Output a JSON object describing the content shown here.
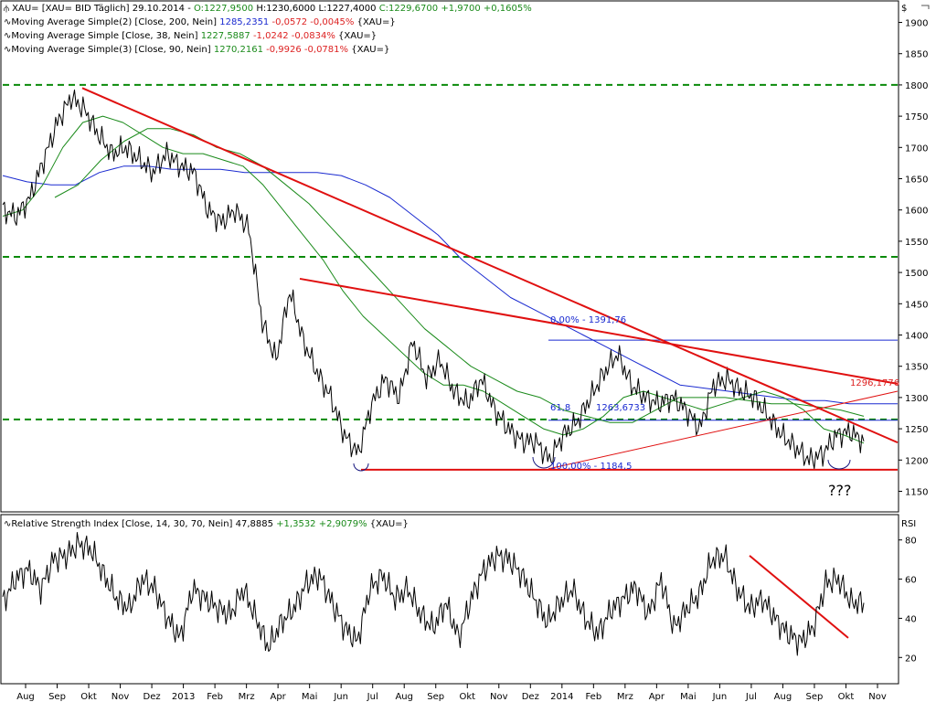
{
  "colors": {
    "price": "#000000",
    "ma200": "#1a2ad0",
    "ma38": "#1a8a1a",
    "ma90": "#1a8a1a",
    "trend": "#e01010",
    "support": "#0a8a0a",
    "fib": "#1a2ad0"
  },
  "legend": {
    "header": {
      "symbol": "XAU= [XAU= BID Täglich] 29.10.2014 - ",
      "o": "O:1227,9500",
      "h": "H:1230,6000",
      "l": "L:1227,4000",
      "c": "C:1229,6700",
      "chg": "+1,9700",
      "pct": "+0,1605%"
    },
    "ma200": {
      "name": "Moving Average Simple(2) [Close, 200, Nein]",
      "val": "1285,2351",
      "chg": "-0,0572",
      "pct": "-0,0045%",
      "tag": "{XAU=}"
    },
    "ma38": {
      "name": "Moving Average Simple [Close, 38, Nein]",
      "val": "1227,5887",
      "chg": "-1,0242",
      "pct": "-0,0834%",
      "tag": "{XAU=}"
    },
    "ma90": {
      "name": "Moving Average Simple(3) [Close, 90, Nein]",
      "val": "1270,2161",
      "chg": "-0,9926",
      "pct": "-0,0781%",
      "tag": "{XAU=}"
    },
    "rsi": {
      "name": "Relative Strength Index [Close, 14, 30, 70, Nein]",
      "val": "47,8885",
      "chg": "+1,3532",
      "pct": "+2,9079%",
      "tag": "{XAU=}"
    }
  },
  "annotations": {
    "fib0": "0,00% - 1391,76",
    "fib61": "61,8",
    "fib61val": "1263,6733",
    "fib100": "100,00% - 1184,5",
    "trend_val": "1296,1776",
    "question": "???"
  },
  "chart_data": [
    {
      "type": "line",
      "title": "",
      "xlabel": "",
      "ylabel": "$",
      "ylim": [
        1120,
        1930
      ],
      "yticks": [
        1900,
        1850,
        1800,
        1750,
        1700,
        1650,
        1600,
        1550,
        1500,
        1450,
        1400,
        1350,
        1300,
        1250,
        1200,
        1150
      ],
      "x_labels": [
        "Aug",
        "Sep",
        "Okt",
        "Nov",
        "Dez",
        "2013",
        "Feb",
        "Mrz",
        "Apr",
        "Mai",
        "Jun",
        "Jul",
        "Aug",
        "Sep",
        "Okt",
        "Nov",
        "Dez",
        "2014",
        "Feb",
        "Mrz",
        "Apr",
        "Mai",
        "Jun",
        "Jul",
        "Aug",
        "Sep",
        "Okt",
        "Nov"
      ],
      "series": [
        {
          "name": "XAU=",
          "values": [
            1600,
            1590,
            1620,
            1680,
            1740,
            1780,
            1760,
            1720,
            1690,
            1700,
            1680,
            1660,
            1690,
            1670,
            1660,
            1600,
            1580,
            1600,
            1570,
            1420,
            1360,
            1470,
            1390,
            1340,
            1300,
            1240,
            1210,
            1290,
            1330,
            1300,
            1390,
            1330,
            1360,
            1310,
            1290,
            1330,
            1280,
            1250,
            1230,
            1230,
            1200,
            1240,
            1260,
            1300,
            1340,
            1370,
            1320,
            1300,
            1290,
            1300,
            1280,
            1250,
            1320,
            1330,
            1310,
            1300,
            1270,
            1240,
            1220,
            1200,
            1210,
            1240,
            1245,
            1230
          ]
        },
        {
          "name": "MA 200",
          "values": [
            1655,
            1645,
            1640,
            1640,
            1660,
            1670,
            1670,
            1665,
            1665,
            1665,
            1660,
            1660,
            1660,
            1660,
            1655,
            1640,
            1620,
            1590,
            1560,
            1520,
            1490,
            1460,
            1440,
            1420,
            1400,
            1380,
            1360,
            1340,
            1320,
            1315,
            1310,
            1305,
            1300,
            1295,
            1295,
            1290,
            1290,
            1290
          ]
        },
        {
          "name": "MA 38",
          "values": [
            1590,
            1600,
            1640,
            1700,
            1740,
            1750,
            1740,
            1720,
            1700,
            1690,
            1690,
            1680,
            1670,
            1640,
            1600,
            1560,
            1520,
            1470,
            1430,
            1400,
            1370,
            1340,
            1320,
            1320,
            1310,
            1290,
            1270,
            1250,
            1240,
            1250,
            1270,
            1300,
            1310,
            1300,
            1290,
            1280,
            1290,
            1300,
            1310,
            1300,
            1280,
            1250,
            1240,
            1227
          ]
        },
        {
          "name": "MA 90",
          "values": [
            1620,
            1640,
            1680,
            1710,
            1730,
            1730,
            1720,
            1700,
            1690,
            1670,
            1640,
            1610,
            1570,
            1530,
            1490,
            1450,
            1410,
            1380,
            1350,
            1330,
            1310,
            1300,
            1280,
            1270,
            1260,
            1260,
            1280,
            1300,
            1300,
            1300,
            1295,
            1290,
            1290,
            1285,
            1280,
            1270
          ]
        }
      ],
      "support_levels": [
        1800,
        1525,
        1265
      ],
      "fib_levels": {
        "0": 1391.76,
        "61.8": 1263.6733,
        "100": 1184.5
      }
    },
    {
      "type": "line",
      "title": "",
      "ylabel": "RSI",
      "ylim": [
        8,
        92
      ],
      "yticks": [
        80,
        60,
        40,
        20
      ],
      "series": [
        {
          "name": "RSI",
          "values": [
            48,
            60,
            65,
            55,
            70,
            72,
            78,
            75,
            62,
            50,
            45,
            60,
            55,
            40,
            30,
            55,
            50,
            45,
            42,
            55,
            40,
            25,
            38,
            45,
            58,
            62,
            48,
            35,
            28,
            55,
            62,
            50,
            55,
            42,
            35,
            48,
            30,
            50,
            65,
            72,
            70,
            62,
            50,
            38,
            48,
            55,
            40,
            32,
            44,
            50,
            56,
            42,
            60,
            35,
            45,
            52,
            70,
            72,
            55,
            45,
            50,
            40,
            32,
            28,
            35,
            58,
            60,
            48,
            47.89
          ]
        }
      ]
    }
  ]
}
